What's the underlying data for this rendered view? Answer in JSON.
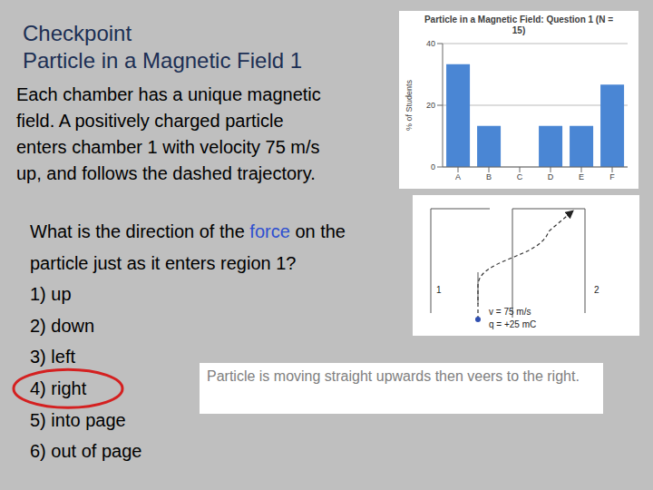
{
  "slide": {
    "title": [
      "Checkpoint",
      "Particle in a Magnetic Field 1"
    ],
    "body": [
      "Each chamber has a unique magnetic",
      "field. A positively charged particle",
      "enters chamber 1 with velocity 75 m/s",
      "up, and follows the dashed trajectory."
    ],
    "question": {
      "text_before": "What is the direction of the",
      "highlight": "force",
      "text_after": "on the particle just as it enters region 1?"
    },
    "options": [
      "1) up",
      "2) down",
      "3) left",
      "4) right",
      "5) into page",
      "6) out of page"
    ],
    "circled_option": "4) right",
    "note": "Particle is moving straight upwards then veers to the right.",
    "diagram": {
      "region_labels": [
        "1",
        "2"
      ],
      "particle_labels": [
        "v = 75 m/s",
        "q = +25 mC"
      ]
    }
  },
  "chart_data": {
    "type": "bar",
    "title": "Particle in a Magnetic Field: Question 1 (N = 15)",
    "y_label": "% of Students",
    "categories": [
      "A",
      "B",
      "C",
      "D",
      "E",
      "F"
    ],
    "values": [
      33.3,
      13.3,
      0,
      13.3,
      13.3,
      26.7
    ],
    "color": "#4a86d4",
    "ylim": [
      0,
      40
    ],
    "yticks": [
      0,
      20,
      40
    ],
    "grid": true
  }
}
